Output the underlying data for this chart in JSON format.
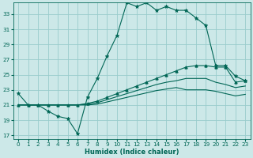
{
  "xlabel": "Humidex (Indice chaleur)",
  "bg_color": "#cce8e8",
  "grid_color": "#99cccc",
  "line_color": "#006655",
  "xlim": [
    -0.5,
    23.5
  ],
  "ylim": [
    16.5,
    34.5
  ],
  "yticks": [
    17,
    19,
    21,
    23,
    25,
    27,
    29,
    31,
    33
  ],
  "xticks": [
    0,
    1,
    2,
    3,
    4,
    5,
    6,
    7,
    8,
    9,
    10,
    11,
    12,
    13,
    14,
    15,
    16,
    17,
    18,
    19,
    20,
    21,
    22,
    23
  ],
  "main_line": [
    22.5,
    21.0,
    21.0,
    20.2,
    19.5,
    19.2,
    17.2,
    22.0,
    24.5,
    27.5,
    30.2,
    34.5,
    34.0,
    34.5,
    33.5,
    34.0,
    33.5,
    33.5,
    32.5,
    31.5,
    26.2,
    26.2,
    24.8,
    24.2
  ],
  "upper_line": [
    21.0,
    21.0,
    21.0,
    21.0,
    21.0,
    21.0,
    21.0,
    21.2,
    21.5,
    22.0,
    22.5,
    23.0,
    23.5,
    24.0,
    24.5,
    25.0,
    25.5,
    26.0,
    26.2,
    26.2,
    26.0,
    26.0,
    24.0,
    24.2
  ],
  "mid_line": [
    21.0,
    21.0,
    21.0,
    21.0,
    21.0,
    21.0,
    21.0,
    21.1,
    21.3,
    21.7,
    22.1,
    22.5,
    22.9,
    23.3,
    23.7,
    24.0,
    24.2,
    24.5,
    24.5,
    24.5,
    24.0,
    23.7,
    23.3,
    23.5
  ],
  "lower_line": [
    21.0,
    21.0,
    21.0,
    21.0,
    21.0,
    21.0,
    21.0,
    21.0,
    21.1,
    21.4,
    21.7,
    22.0,
    22.3,
    22.6,
    22.9,
    23.1,
    23.3,
    23.0,
    23.0,
    23.0,
    22.8,
    22.5,
    22.2,
    22.4
  ]
}
